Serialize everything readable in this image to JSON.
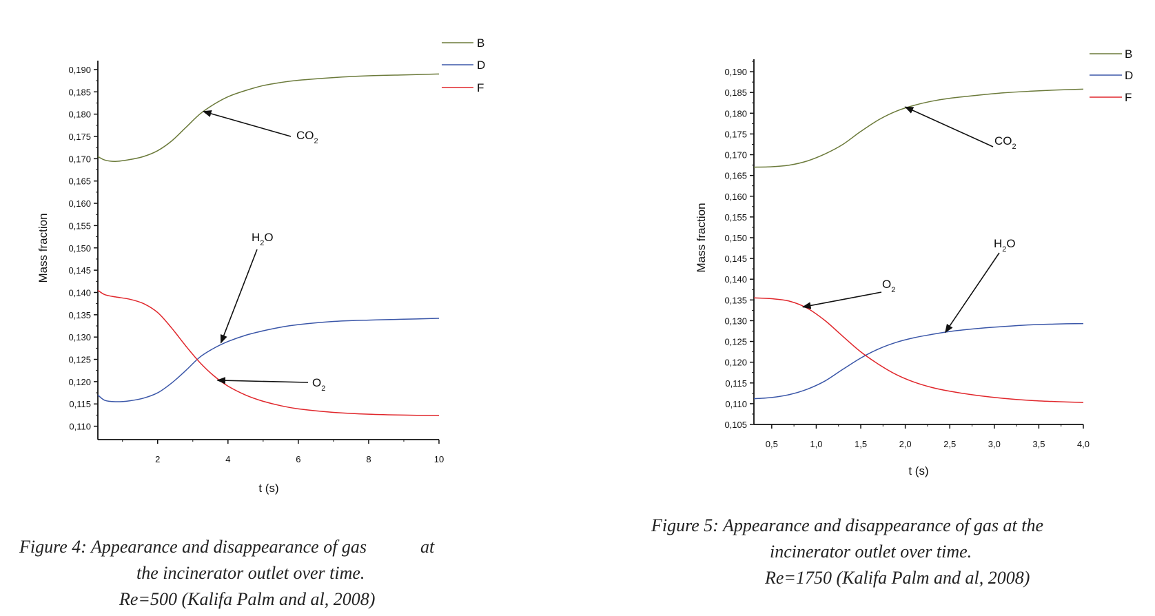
{
  "chart_data": [
    {
      "type": "line",
      "ylabel": "Mass fraction",
      "xlabel": "t (s)",
      "xlim": [
        0.3,
        10
      ],
      "ylim": [
        0.107,
        0.192
      ],
      "xticks": [
        2,
        4,
        6,
        8,
        10
      ],
      "xtick_labels": [
        "2",
        "4",
        "6",
        "8",
        "10"
      ],
      "yticks": [
        0.11,
        0.115,
        0.12,
        0.125,
        0.13,
        0.135,
        0.14,
        0.145,
        0.15,
        0.155,
        0.16,
        0.165,
        0.17,
        0.175,
        0.18,
        0.185,
        0.19
      ],
      "ytick_labels": [
        "0,110",
        "0,115",
        "0,120",
        "0,125",
        "0,130",
        "0,135",
        "0,140",
        "0,145",
        "0,150",
        "0,155",
        "0,160",
        "0,165",
        "0,170",
        "0,175",
        "0,180",
        "0,185",
        "0,190"
      ],
      "legend": [
        "B",
        "D",
        "F"
      ],
      "legend_position": "top-right",
      "series": [
        {
          "name": "B",
          "color": "#6b7a3a",
          "x": [
            0.3,
            0.5,
            0.8,
            1.2,
            1.6,
            2.0,
            2.4,
            2.8,
            3.2,
            3.6,
            4.0,
            4.5,
            5.0,
            5.5,
            6.0,
            7.0,
            8.0,
            9.0,
            10.0
          ],
          "y": [
            0.1705,
            0.1697,
            0.1694,
            0.1698,
            0.1705,
            0.1718,
            0.174,
            0.177,
            0.18,
            0.1822,
            0.1839,
            0.1853,
            0.1864,
            0.1871,
            0.1876,
            0.1882,
            0.1886,
            0.1888,
            0.189
          ]
        },
        {
          "name": "D",
          "color": "#3a56a8",
          "x": [
            0.3,
            0.5,
            0.8,
            1.2,
            1.6,
            2.0,
            2.4,
            2.8,
            3.2,
            3.6,
            4.0,
            4.5,
            5.0,
            5.5,
            6.0,
            7.0,
            8.0,
            9.0,
            10.0
          ],
          "y": [
            0.117,
            0.1158,
            0.1155,
            0.1157,
            0.1163,
            0.1175,
            0.1197,
            0.1225,
            0.1255,
            0.1275,
            0.129,
            0.1304,
            0.1314,
            0.1322,
            0.1328,
            0.1335,
            0.1338,
            0.134,
            0.1342
          ]
        },
        {
          "name": "F",
          "color": "#e0262b",
          "x": [
            0.3,
            0.5,
            0.8,
            1.2,
            1.6,
            2.0,
            2.4,
            2.8,
            3.2,
            3.6,
            4.0,
            4.5,
            5.0,
            5.5,
            6.0,
            7.0,
            8.0,
            9.0,
            10.0
          ],
          "y": [
            0.1405,
            0.1395,
            0.139,
            0.1385,
            0.1375,
            0.1355,
            0.132,
            0.128,
            0.1243,
            0.1213,
            0.119,
            0.117,
            0.1156,
            0.1146,
            0.1139,
            0.1131,
            0.1127,
            0.1125,
            0.1124
          ]
        }
      ],
      "annotations": [
        {
          "main": "CO",
          "sub": "2",
          "suffix": "",
          "arrow_to": [
            3.3,
            0.1806
          ]
        },
        {
          "main": "H",
          "sub": "2",
          "suffix": "O",
          "arrow_to": [
            3.8,
            0.1287
          ]
        },
        {
          "main": "O",
          "sub": "2",
          "suffix": "",
          "arrow_to": [
            3.7,
            0.1203
          ]
        }
      ]
    },
    {
      "type": "line",
      "ylabel": "Mass fraction",
      "xlabel": "t (s)",
      "xlim": [
        0.3,
        4.0
      ],
      "ylim": [
        0.105,
        0.193
      ],
      "xticks": [
        0.5,
        1.0,
        1.5,
        2.0,
        2.5,
        3.0,
        3.5,
        4.0
      ],
      "xtick_labels": [
        "0,5",
        "1,0",
        "1,5",
        "2,0",
        "2,5",
        "3,0",
        "3,5",
        "4,0"
      ],
      "yticks": [
        0.105,
        0.11,
        0.115,
        0.12,
        0.125,
        0.13,
        0.135,
        0.14,
        0.145,
        0.15,
        0.155,
        0.16,
        0.165,
        0.17,
        0.175,
        0.18,
        0.185,
        0.19
      ],
      "ytick_labels": [
        "0,105",
        "0,110",
        "0,115",
        "0,120",
        "0,125",
        "0,130",
        "0,135",
        "0,140",
        "0,145",
        "0,150",
        "0,155",
        "0,160",
        "0,165",
        "0,170",
        "0,175",
        "0,180",
        "0,185",
        "0,190"
      ],
      "legend": [
        "B",
        "D",
        "F"
      ],
      "legend_position": "top-right",
      "series": [
        {
          "name": "B",
          "color": "#6b7a3a",
          "x": [
            0.3,
            0.5,
            0.7,
            0.9,
            1.1,
            1.3,
            1.5,
            1.7,
            1.9,
            2.1,
            2.3,
            2.5,
            2.8,
            3.1,
            3.4,
            3.7,
            4.0
          ],
          "y": [
            0.167,
            0.1671,
            0.1675,
            0.1685,
            0.1702,
            0.1725,
            0.1756,
            0.1784,
            0.1805,
            0.1819,
            0.1829,
            0.1836,
            0.1843,
            0.1849,
            0.1853,
            0.1856,
            0.1858
          ]
        },
        {
          "name": "D",
          "color": "#3a56a8",
          "x": [
            0.3,
            0.5,
            0.7,
            0.9,
            1.1,
            1.3,
            1.5,
            1.7,
            1.9,
            2.1,
            2.3,
            2.5,
            2.8,
            3.1,
            3.4,
            3.7,
            4.0
          ],
          "y": [
            0.1112,
            0.1115,
            0.1122,
            0.1135,
            0.1155,
            0.1183,
            0.121,
            0.1232,
            0.1248,
            0.1259,
            0.1267,
            0.1274,
            0.1281,
            0.1286,
            0.129,
            0.1292,
            0.1293
          ]
        },
        {
          "name": "F",
          "color": "#e0262b",
          "x": [
            0.3,
            0.5,
            0.7,
            0.9,
            1.1,
            1.3,
            1.5,
            1.7,
            1.9,
            2.1,
            2.3,
            2.5,
            2.8,
            3.1,
            3.4,
            3.7,
            4.0
          ],
          "y": [
            0.1355,
            0.1353,
            0.1347,
            0.133,
            0.13,
            0.1262,
            0.1225,
            0.1195,
            0.117,
            0.1152,
            0.1139,
            0.113,
            0.112,
            0.1113,
            0.1108,
            0.1105,
            0.1103
          ]
        }
      ],
      "annotations": [
        {
          "main": "CO",
          "sub": "2",
          "suffix": "",
          "arrow_to": [
            2.0,
            0.1815
          ]
        },
        {
          "main": "H",
          "sub": "2",
          "suffix": "O",
          "arrow_to": [
            2.45,
            0.1272
          ]
        },
        {
          "main": "O",
          "sub": "2",
          "suffix": "",
          "arrow_to": [
            0.85,
            0.1333
          ]
        }
      ]
    }
  ],
  "captions": {
    "fig4_line1": "Figure 4: Appearance and disappearance of gas            at",
    "fig4_line2": "the incinerator outlet over time.",
    "fig4_line3": "Re=500 (Kalifa Palm and al, 2008)",
    "fig5_line1": "Figure 5: Appearance and disappearance of gas at the",
    "fig5_line2": "incinerator outlet over time.",
    "fig5_line3": "Re=1750 (Kalifa Palm and al, 2008)"
  }
}
